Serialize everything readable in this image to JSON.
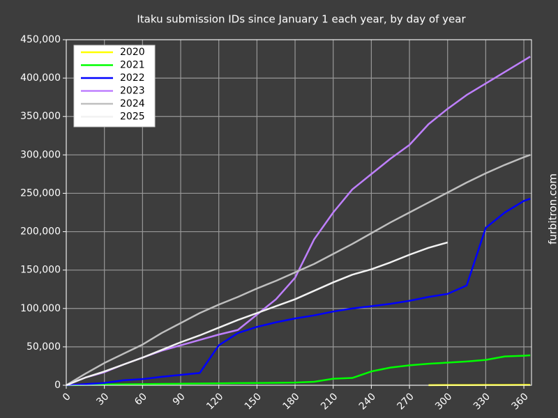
{
  "chart_data": {
    "type": "line",
    "title": "Itaku submission IDs since January 1 each year, by day of year",
    "side_note": "furbitron.com",
    "x": [
      0,
      15,
      30,
      45,
      60,
      75,
      90,
      105,
      120,
      135,
      150,
      165,
      180,
      195,
      210,
      225,
      240,
      255,
      270,
      285,
      300,
      315,
      330,
      345,
      360,
      365
    ],
    "series": [
      {
        "name": "2020",
        "color": "#ffff00",
        "values": [
          null,
          null,
          null,
          null,
          null,
          null,
          null,
          null,
          null,
          null,
          null,
          null,
          null,
          null,
          null,
          null,
          null,
          null,
          null,
          100,
          200,
          250,
          300,
          350,
          400,
          500
        ]
      },
      {
        "name": "2021",
        "color": "#00ff00",
        "values": [
          0,
          500,
          1000,
          1200,
          1500,
          1800,
          2000,
          2300,
          2500,
          2800,
          3000,
          3200,
          3500,
          4500,
          8500,
          9500,
          18000,
          23000,
          26000,
          28000,
          29500,
          31000,
          33000,
          37500,
          38500,
          39000
        ]
      },
      {
        "name": "2022",
        "color": "#0000ff",
        "values": [
          0,
          1500,
          3000,
          6500,
          8000,
          11000,
          13500,
          16000,
          52000,
          68000,
          76000,
          82000,
          87000,
          91000,
          96000,
          100000,
          103000,
          106000,
          110000,
          115000,
          119000,
          130000,
          205000,
          225000,
          240000,
          243000
        ]
      },
      {
        "name": "2023",
        "color": "#bf80ff",
        "values": [
          0,
          10000,
          17000,
          27000,
          36000,
          45000,
          52000,
          59000,
          66000,
          72000,
          92000,
          112000,
          140000,
          190000,
          225000,
          255000,
          275000,
          295000,
          313000,
          340000,
          360000,
          378000,
          393000,
          408000,
          423000,
          428000
        ]
      },
      {
        "name": "2024",
        "color": "#bfbfbf",
        "values": [
          0,
          15000,
          29000,
          41000,
          53000,
          68000,
          81000,
          94000,
          105000,
          115000,
          126000,
          136000,
          147000,
          158000,
          171000,
          184000,
          198000,
          212000,
          225000,
          238000,
          251000,
          264000,
          276000,
          287000,
          297000,
          300000
        ]
      },
      {
        "name": "2025",
        "color": "#f2f2f2",
        "values": [
          0,
          10000,
          18000,
          27000,
          36000,
          46000,
          56000,
          65000,
          75000,
          85000,
          94000,
          103000,
          112000,
          123000,
          134000,
          144000,
          151000,
          160000,
          170000,
          179000,
          186000,
          null,
          null,
          null,
          null,
          null
        ]
      }
    ],
    "xlim": [
      0,
      366
    ],
    "ylim": [
      0,
      450000
    ],
    "xticks": [
      0,
      30,
      60,
      90,
      120,
      150,
      180,
      210,
      240,
      270,
      300,
      330,
      360
    ],
    "yticks": [
      0,
      {
        "value": 50000,
        "label": "50,000"
      },
      {
        "value": 100000,
        "label": "100,000"
      },
      {
        "value": 150000,
        "label": "150,000"
      },
      {
        "value": 200000,
        "label": "200,000"
      },
      {
        "value": 250000,
        "label": "250,000"
      },
      {
        "value": 300000,
        "label": "300,000"
      },
      {
        "value": 350000,
        "label": "350,000"
      },
      {
        "value": 400000,
        "label": "400,000"
      },
      {
        "value": 450000,
        "label": "450,000"
      }
    ],
    "grid": true,
    "legend": "upper-left",
    "background": "#3d3d3d",
    "grid_color": "#999999"
  }
}
